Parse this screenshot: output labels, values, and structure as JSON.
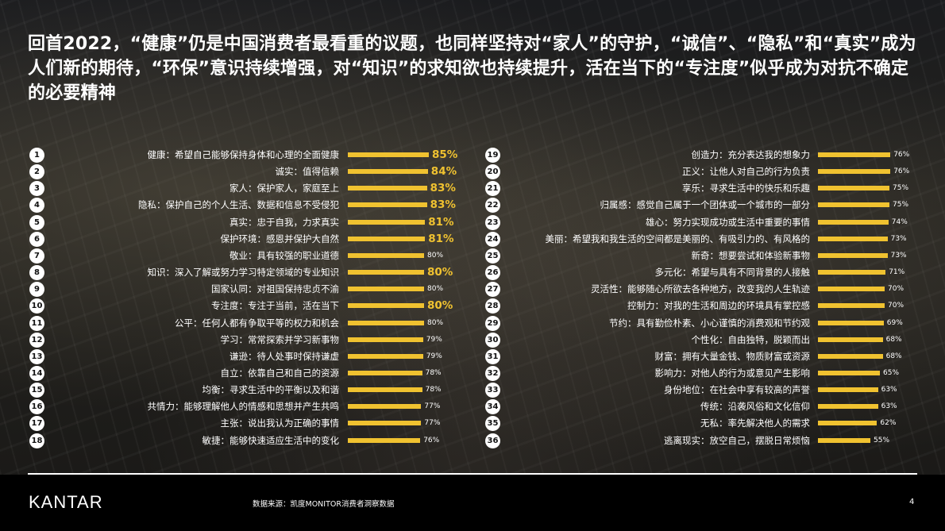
{
  "title": "回首2022，“健康”仍是中国消费者最看重的议题，也同样坚持对“家人”的守护，“诚信”、“隐私”和“真实”成为人们新的期待，“环保”意识持续增强，对“知识”的求知欲也持续提升，活在当下的“专注度”似乎成为对抗不确定的必要精神",
  "footer": {
    "logo": "KANTAR",
    "source": "数据来源：凯度MONITOR消费者洞察数据",
    "page": "4"
  },
  "colors": {
    "bar": "#f0c230",
    "highlight_value": "#f0c230"
  },
  "chart_data": {
    "type": "bar",
    "orientation": "horizontal",
    "ylim": [
      0,
      100
    ],
    "unit": "%",
    "items": [
      {
        "rank": "1",
        "label": "健康：希望自己能够保持身体和心理的全面健康",
        "value": 85,
        "text": "85%",
        "highlight": true
      },
      {
        "rank": "2",
        "label": "诚实：值得信赖",
        "value": 84,
        "text": "84%",
        "highlight": true
      },
      {
        "rank": "3",
        "label": "家人：保护家人，家庭至上",
        "value": 83,
        "text": "83%",
        "highlight": true
      },
      {
        "rank": "4",
        "label": "隐私：保护自己的个人生活、数据和信息不受侵犯",
        "value": 83,
        "text": "83%",
        "highlight": true
      },
      {
        "rank": "5",
        "label": "真实：忠于自我，力求真实",
        "value": 81,
        "text": "81%",
        "highlight": true
      },
      {
        "rank": "6",
        "label": "保护环境：感恩并保护大自然",
        "value": 81,
        "text": "81%",
        "highlight": true
      },
      {
        "rank": "7",
        "label": "敬业：具有较强的职业道德",
        "value": 80,
        "text": "80%",
        "highlight": false
      },
      {
        "rank": "8",
        "label": "知识：深入了解或努力学习特定领域的专业知识",
        "value": 80,
        "text": "80%",
        "highlight": true
      },
      {
        "rank": "9",
        "label": "国家认同：对祖国保持忠贞不渝",
        "value": 80,
        "text": "80%",
        "highlight": false
      },
      {
        "rank": "10",
        "label": "专注度：专注于当前，活在当下",
        "value": 80,
        "text": "80%",
        "highlight": true
      },
      {
        "rank": "11",
        "label": "公平：任何人都有争取平等的权力和机会",
        "value": 80,
        "text": "80%",
        "highlight": false
      },
      {
        "rank": "12",
        "label": "学习：常常探索并学习新事物",
        "value": 79,
        "text": "79%",
        "highlight": false
      },
      {
        "rank": "13",
        "label": "谦逊：待人处事时保持谦虚",
        "value": 79,
        "text": "79%",
        "highlight": false
      },
      {
        "rank": "14",
        "label": "自立：依靠自己和自己的资源",
        "value": 78,
        "text": "78%",
        "highlight": false
      },
      {
        "rank": "15",
        "label": "均衡：寻求生活中的平衡以及和谐",
        "value": 78,
        "text": "78%",
        "highlight": false
      },
      {
        "rank": "16",
        "label": "共情力：能够理解他人的情感和思想并产生共鸣",
        "value": 77,
        "text": "77%",
        "highlight": false
      },
      {
        "rank": "17",
        "label": "主张：说出我认为正确的事情",
        "value": 77,
        "text": "77%",
        "highlight": false
      },
      {
        "rank": "18",
        "label": "敏捷：能够快速适应生活中的变化",
        "value": 76,
        "text": "76%",
        "highlight": false
      },
      {
        "rank": "19",
        "label": "创造力：充分表达我的想象力",
        "value": 76,
        "text": "76%",
        "highlight": false
      },
      {
        "rank": "20",
        "label": "正义：让他人对自己的行为负责",
        "value": 76,
        "text": "76%",
        "highlight": false
      },
      {
        "rank": "21",
        "label": "享乐：寻求生活中的快乐和乐趣",
        "value": 75,
        "text": "75%",
        "highlight": false
      },
      {
        "rank": "22",
        "label": "归属感：感觉自己属于一个团体或一个城市的一部分",
        "value": 75,
        "text": "75%",
        "highlight": false
      },
      {
        "rank": "23",
        "label": "雄心：努力实现成功或生活中重要的事情",
        "value": 74,
        "text": "74%",
        "highlight": false
      },
      {
        "rank": "24",
        "label": "美丽：希望我和我生活的空间都是美丽的、有吸引力的、有风格的",
        "value": 73,
        "text": "73%",
        "highlight": false
      },
      {
        "rank": "25",
        "label": "新奇：想要尝试和体验新事物",
        "value": 73,
        "text": "73%",
        "highlight": false
      },
      {
        "rank": "26",
        "label": "多元化：希望与具有不同背景的人接触",
        "value": 71,
        "text": "71%",
        "highlight": false
      },
      {
        "rank": "27",
        "label": "灵活性：能够随心所欲去各种地方，改变我的人生轨迹",
        "value": 70,
        "text": "70%",
        "highlight": false
      },
      {
        "rank": "28",
        "label": "控制力：对我的生活和周边的环境具有掌控感",
        "value": 70,
        "text": "70%",
        "highlight": false
      },
      {
        "rank": "29",
        "label": "节约：具有勤俭朴素、小心谨慎的消费观和节约观",
        "value": 69,
        "text": "69%",
        "highlight": false
      },
      {
        "rank": "30",
        "label": "个性化：自由独特，脱颖而出",
        "value": 68,
        "text": "68%",
        "highlight": false
      },
      {
        "rank": "31",
        "label": "财富：拥有大量金钱、物质财富或资源",
        "value": 68,
        "text": "68%",
        "highlight": false
      },
      {
        "rank": "32",
        "label": "影响力：对他人的行为或意见产生影响",
        "value": 65,
        "text": "65%",
        "highlight": false
      },
      {
        "rank": "33",
        "label": "身份地位：在社会中享有较高的声誉",
        "value": 63,
        "text": "63%",
        "highlight": false
      },
      {
        "rank": "34",
        "label": "传统：沿袭风俗和文化信仰",
        "value": 63,
        "text": "63%",
        "highlight": false
      },
      {
        "rank": "35",
        "label": "无私：率先解决他人的需求",
        "value": 62,
        "text": "62%",
        "highlight": false
      },
      {
        "rank": "36",
        "label": "逃离现实：放空自己，摆脱日常烦恼",
        "value": 55,
        "text": "55%",
        "highlight": false
      }
    ]
  }
}
